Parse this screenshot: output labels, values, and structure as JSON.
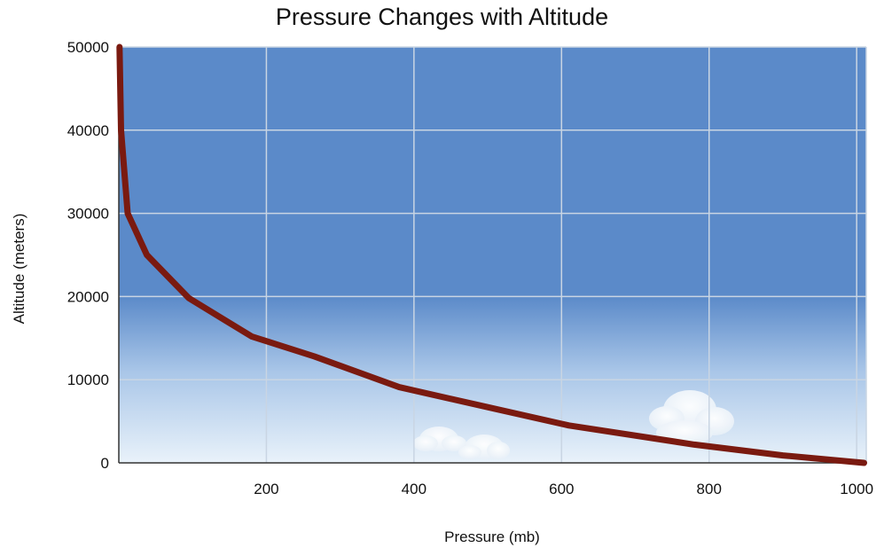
{
  "chart_data": {
    "type": "line",
    "title": "Pressure Changes with Altitude",
    "xlabel": "Pressure (mb)",
    "ylabel": "Altitude (meters)",
    "xlim": [
      0,
      1013
    ],
    "ylim": [
      0,
      50000
    ],
    "x_ticks": [
      200,
      400,
      600,
      800,
      1000
    ],
    "y_ticks": [
      0,
      10000,
      20000,
      30000,
      40000,
      50000
    ],
    "grid": true,
    "legend": "none",
    "series": [
      {
        "color": "#7a1a10",
        "points": [
          {
            "x": 1,
            "y": 50000
          },
          {
            "x": 3,
            "y": 40000
          },
          {
            "x": 12,
            "y": 30000
          },
          {
            "x": 38,
            "y": 25000
          },
          {
            "x": 95,
            "y": 19800
          },
          {
            "x": 180,
            "y": 15200
          },
          {
            "x": 265,
            "y": 12800
          },
          {
            "x": 380,
            "y": 9100
          },
          {
            "x": 500,
            "y": 6700
          },
          {
            "x": 610,
            "y": 4500
          },
          {
            "x": 780,
            "y": 2200
          },
          {
            "x": 900,
            "y": 900
          },
          {
            "x": 1010,
            "y": 0
          }
        ]
      }
    ],
    "colors": {
      "sky_top": "#5b8ac9",
      "sky_bottom": "#e9f2fa",
      "grid": "#c9d5e3"
    }
  }
}
